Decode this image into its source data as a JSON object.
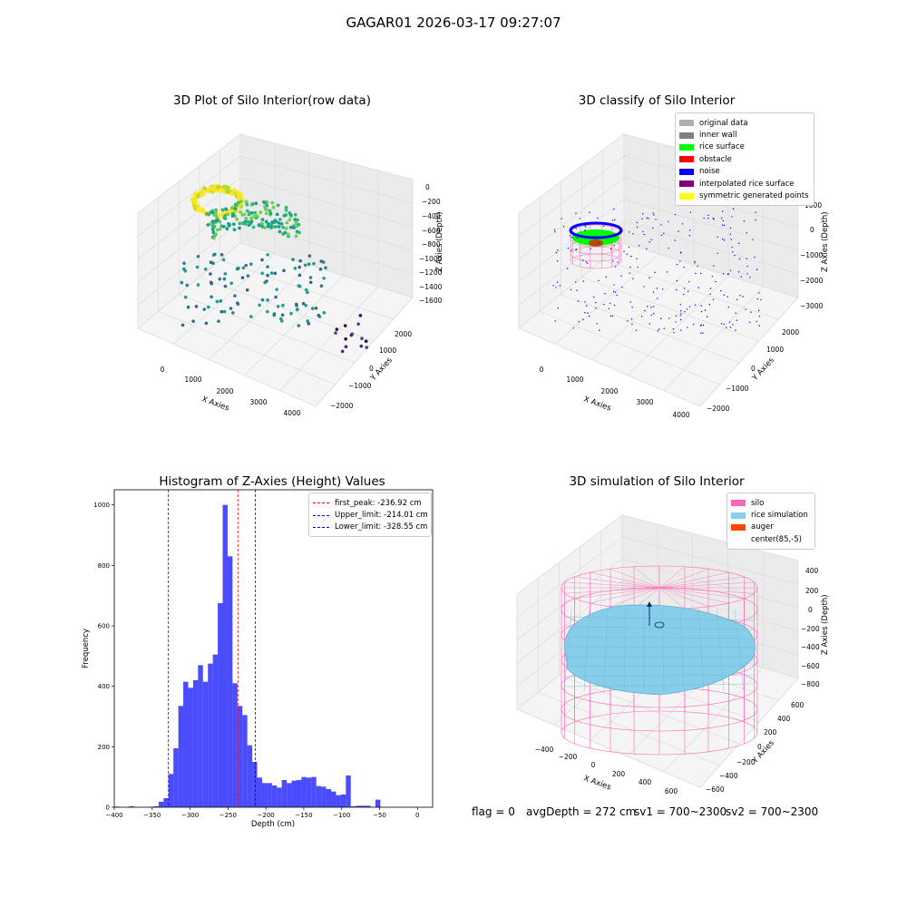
{
  "suptitle": "GAGAR01 2026-03-17 09:27:07",
  "footer": {
    "flag": "flag = 0",
    "avg": "avgDepth = 272 cm",
    "sv1": "sv1 = 700~2300",
    "sv2": "sv2 = 700~2300"
  },
  "panels": {
    "raw3d": {
      "title": "3D Plot of Silo Interior(row data)",
      "xlabel": "X Axies",
      "ylabel": "Y Axies",
      "zlabel": "Z Axies (Depth)",
      "xticks": [
        "0",
        "1000",
        "2000",
        "3000",
        "4000"
      ],
      "yticks": [
        "−2000",
        "−1000",
        "0",
        "1000",
        "2000"
      ],
      "zticks": [
        "0",
        "−200",
        "−400",
        "−600",
        "−800",
        "−1000",
        "−1200",
        "−1400",
        "−1600"
      ]
    },
    "classify3d": {
      "title": "3D classify of Silo Interior",
      "xlabel": "X Axies",
      "ylabel": "Y Axies",
      "zlabel": "Z Axies (Depth)",
      "xticks": [
        "0",
        "1000",
        "2000",
        "3000",
        "4000"
      ],
      "yticks": [
        "−2000",
        "−1000",
        "0",
        "1000",
        "2000"
      ],
      "zticks": [
        "1000",
        "0",
        "−1000",
        "−2000",
        "−3000"
      ],
      "legend": [
        {
          "label": "original data",
          "color": "#b0b0b0"
        },
        {
          "label": "inner wall",
          "color": "#808080"
        },
        {
          "label": "rice surface",
          "color": "#00ff00"
        },
        {
          "label": "obstacle",
          "color": "#ff0000"
        },
        {
          "label": "noise",
          "color": "#0000ff"
        },
        {
          "label": "interpolated rice surface",
          "color": "#800080"
        },
        {
          "label": "symmetric generated points",
          "color": "#ffff00"
        }
      ]
    },
    "sim3d": {
      "title": "3D simulation of Silo Interior",
      "xlabel": "X Axies",
      "ylabel": "Y Axies",
      "zlabel": "Z Axies (Depth)",
      "xticks": [
        "−400",
        "−200",
        "0",
        "200",
        "400",
        "600"
      ],
      "yticks": [
        "−600",
        "−400",
        "−200",
        "0",
        "200",
        "400",
        "600"
      ],
      "zticks": [
        "400",
        "200",
        "0",
        "−200",
        "−400",
        "−600",
        "−800"
      ],
      "legend": [
        {
          "label": "silo",
          "color": "#ff69b4"
        },
        {
          "label": "rice simulation",
          "color": "#87ceeb"
        },
        {
          "label": "auger",
          "color": "#ff4500"
        },
        {
          "label": "center(85,-5)",
          "color": ""
        }
      ]
    }
  },
  "chart_data": [
    {
      "type": "bar",
      "title": "Histogram of Z-Axies (Height) Values",
      "xlabel": "Depth (cm)",
      "ylabel": "Frequency",
      "xlim": [
        -400,
        20
      ],
      "ylim": [
        0,
        1050
      ],
      "xticks": [
        -400,
        -350,
        -300,
        -250,
        -200,
        -150,
        -100,
        -50,
        0
      ],
      "yticks": [
        0,
        200,
        400,
        600,
        800,
        1000
      ],
      "bin_width": 6.5,
      "bin_starts": [
        -400,
        -393.5,
        -387,
        -380.5,
        -374,
        -367.5,
        -361,
        -354.5,
        -348,
        -341.5,
        -335,
        -328.5,
        -322,
        -315.5,
        -309,
        -302.5,
        -296,
        -289.5,
        -283,
        -276.5,
        -270,
        -263.5,
        -257,
        -250.5,
        -244,
        -237.5,
        -231,
        -224.5,
        -218,
        -211.5,
        -205,
        -198.5,
        -192,
        -185.5,
        -179,
        -172.5,
        -166,
        -159.5,
        -153,
        -146.5,
        -140,
        -133.5,
        -127,
        -120.5,
        -114,
        -107.5,
        -101,
        -94.5,
        -88,
        -81.5,
        -75,
        -68.5,
        -62,
        -55.5,
        -49,
        -42.5,
        -36,
        -29.5,
        -23,
        -16.5,
        -10,
        -3.5
      ],
      "values": [
        2,
        0,
        0,
        3,
        0,
        0,
        0,
        1,
        3,
        18,
        30,
        110,
        195,
        335,
        415,
        395,
        420,
        470,
        415,
        475,
        505,
        675,
        1000,
        830,
        410,
        335,
        305,
        205,
        150,
        98,
        80,
        80,
        72,
        65,
        90,
        80,
        88,
        90,
        100,
        98,
        100,
        70,
        68,
        60,
        52,
        40,
        42,
        105,
        3,
        5,
        5,
        5,
        0,
        25,
        0,
        0,
        0,
        0,
        0,
        0,
        0,
        0
      ],
      "color": "#0000ff",
      "vlines": [
        {
          "label": "first_peak: -236.92 cm",
          "x": -236.92,
          "color": "#ff0000"
        },
        {
          "label": "Upper_limit: -214.01 cm",
          "x": -214.01,
          "color": "#0000ff"
        },
        {
          "label": "Lower_limit: -328.55 cm",
          "x": -328.55,
          "color": "#0000ff"
        }
      ],
      "legend_position": "upper right"
    }
  ]
}
